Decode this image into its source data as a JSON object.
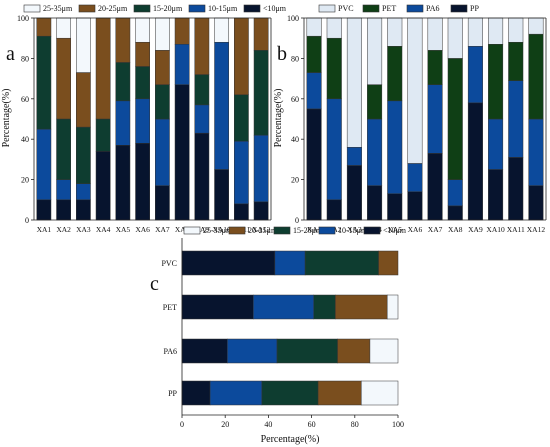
{
  "colors": {
    "c25_35": "#f3f8fc",
    "c20_25": "#7a4e1e",
    "c15_20": "#0e3d30",
    "c10_15": "#0c4a9c",
    "c_lt10": "#07142e",
    "PVC": "#dfe9f3",
    "PET": "#0f3f15",
    "PA6": "#0c4a9c",
    "PP": "#07142e"
  },
  "chart_data": [
    {
      "type": "bar",
      "stacked": true,
      "orientation": "vertical",
      "panel_label": "a",
      "ylabel": "Percentage(%)",
      "ylim": [
        0,
        100
      ],
      "yticks": [
        0,
        20,
        40,
        60,
        80,
        100
      ],
      "legend": "top",
      "categories": [
        "XA1",
        "XA2",
        "XA3",
        "XA4",
        "XA5",
        "XA6",
        "XA7",
        "XA8",
        "XA9",
        "XA10",
        "XA11",
        "XA12"
      ],
      "series": [
        {
          "name": "<10μm",
          "color_key": "c_lt10",
          "values": [
            10,
            10,
            10,
            34,
            37,
            38,
            17,
            67,
            43,
            25,
            8,
            9
          ]
        },
        {
          "name": "10-15μm",
          "color_key": "c10_15",
          "values": [
            35,
            10,
            8,
            0,
            22,
            22,
            33,
            20,
            14,
            63,
            31,
            33
          ]
        },
        {
          "name": "15-20μm",
          "color_key": "c15_20",
          "values": [
            46,
            30,
            28,
            16,
            19,
            16,
            17,
            0,
            15,
            0,
            23,
            42
          ]
        },
        {
          "name": "20-25μm",
          "color_key": "c20_25",
          "values": [
            9,
            40,
            27,
            50,
            22,
            12,
            17,
            13,
            28,
            0,
            38,
            16
          ]
        },
        {
          "name": "25-35μm",
          "color_key": "c25_35",
          "values": [
            0,
            10,
            27,
            0,
            0,
            12,
            16,
            0,
            0,
            12,
            0,
            0
          ]
        }
      ]
    },
    {
      "type": "bar",
      "stacked": true,
      "orientation": "vertical",
      "panel_label": "b",
      "ylabel": "Percentage(%)",
      "ylim": [
        0,
        100
      ],
      "yticks": [
        0,
        20,
        40,
        60,
        80,
        100
      ],
      "legend": "top",
      "categories": [
        "XA1",
        "XA2",
        "XA3",
        "XA4",
        "XA5",
        "XA6",
        "XA7",
        "XA8",
        "XA9",
        "XA10",
        "XA11",
        "XA12"
      ],
      "series": [
        {
          "name": "PP",
          "color_key": "PP",
          "values": [
            55,
            10,
            27,
            17,
            13,
            14,
            33,
            7,
            58,
            25,
            31,
            17
          ]
        },
        {
          "name": "PA6",
          "color_key": "PA6",
          "values": [
            18,
            50,
            9,
            33,
            46,
            14,
            34,
            13,
            28,
            25,
            38,
            33
          ]
        },
        {
          "name": "PET",
          "color_key": "PET",
          "values": [
            18,
            30,
            0,
            17,
            27,
            0,
            17,
            60,
            0,
            37,
            19,
            42
          ]
        },
        {
          "name": "PVC",
          "color_key": "PVC",
          "values": [
            9,
            10,
            64,
            33,
            14,
            72,
            16,
            20,
            14,
            13,
            12,
            8
          ]
        }
      ]
    },
    {
      "type": "bar",
      "stacked": true,
      "orientation": "horizontal",
      "panel_label": "c",
      "xlabel": "Percentage(%)",
      "xlim": [
        0,
        100
      ],
      "xticks": [
        0,
        20,
        40,
        60,
        80,
        100
      ],
      "legend": "top-right",
      "categories": [
        "PVC",
        "PET",
        "PA6",
        "PP"
      ],
      "series": [
        {
          "name": "<10μm",
          "color_key": "c_lt10",
          "values": [
            43,
            33,
            21,
            13
          ]
        },
        {
          "name": "10-15μm",
          "color_key": "c10_15",
          "values": [
            14,
            28,
            23,
            24
          ]
        },
        {
          "name": "15-20μm",
          "color_key": "c15_20",
          "values": [
            34,
            10,
            28,
            26
          ]
        },
        {
          "name": "20-25μm",
          "color_key": "c20_25",
          "values": [
            9,
            24,
            15,
            20
          ]
        },
        {
          "name": "25-35μm",
          "color_key": "c25_35",
          "values": [
            0,
            5,
            13,
            17
          ]
        }
      ]
    }
  ]
}
